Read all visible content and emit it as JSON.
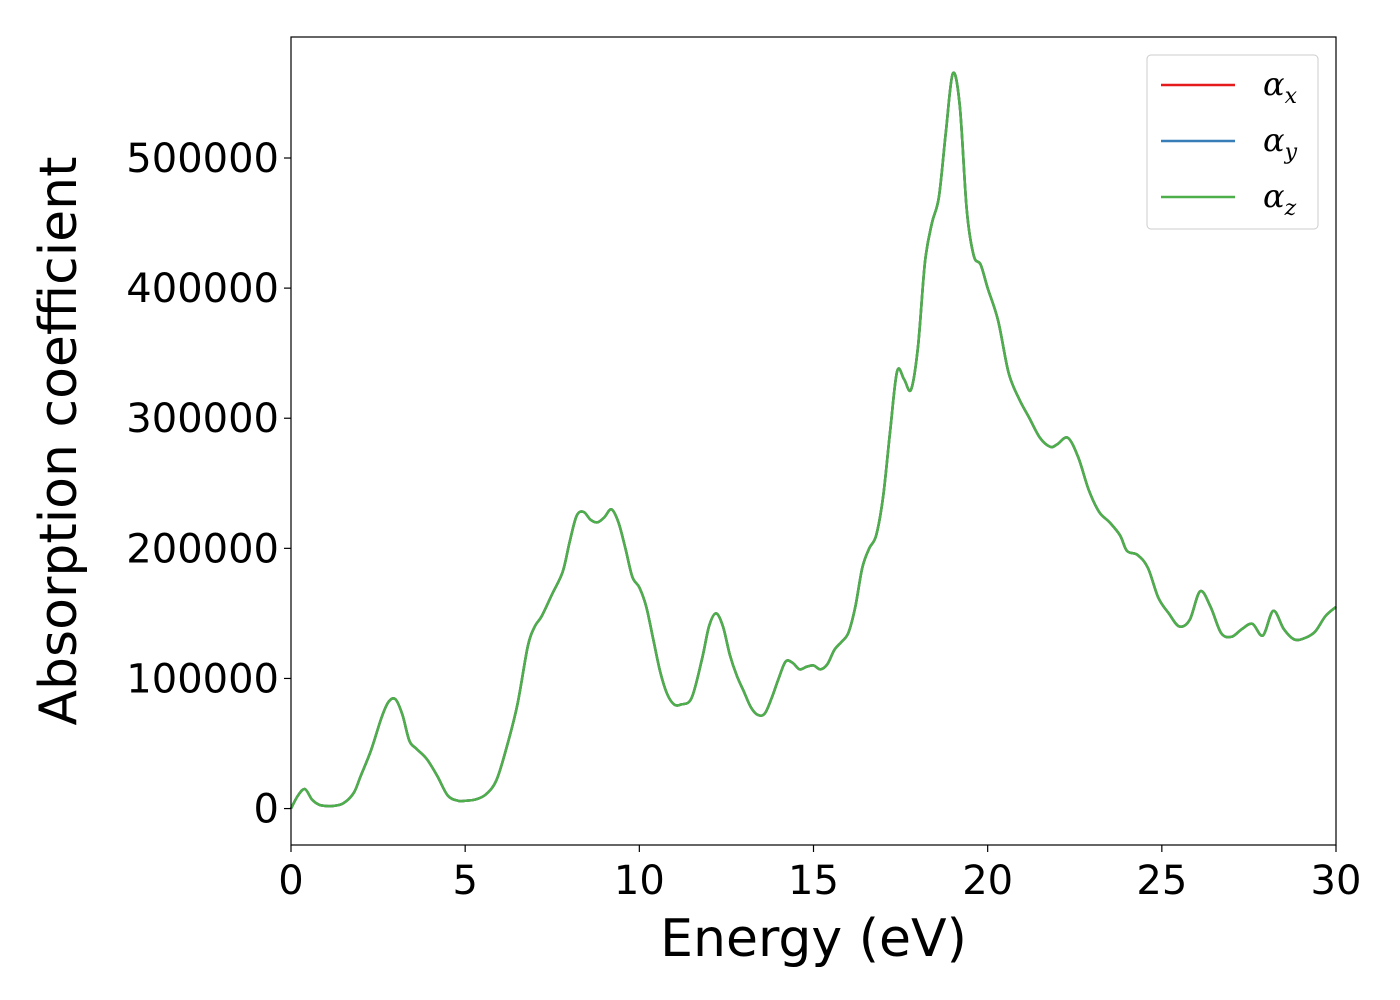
{
  "chart_data": {
    "type": "line",
    "title": "",
    "xlabel": "Energy (eV)",
    "ylabel": "Absorption coefficient",
    "xlim": [
      0,
      30
    ],
    "ylim": [
      -28000,
      593000
    ],
    "x_ticks": [
      0,
      5,
      10,
      15,
      20,
      25,
      30
    ],
    "x_tick_labels": [
      "0",
      "5",
      "10",
      "15",
      "20",
      "25",
      "30"
    ],
    "y_ticks": [
      0,
      100000,
      200000,
      300000,
      400000,
      500000
    ],
    "y_tick_labels": [
      "0",
      "100000",
      "200000",
      "300000",
      "400000",
      "500000"
    ],
    "grid": false,
    "legend_position": "top-right",
    "legend": [
      {
        "symbol": "α",
        "sub": "x",
        "color": "#e41a1c"
      },
      {
        "symbol": "α",
        "sub": "y",
        "color": "#377eb8"
      },
      {
        "symbol": "α",
        "sub": "z",
        "color": "#4daf4a"
      }
    ],
    "x": [
      0,
      0.2,
      0.4,
      0.6,
      0.8,
      1.0,
      1.2,
      1.5,
      1.8,
      2.0,
      2.3,
      2.6,
      2.8,
      3.0,
      3.2,
      3.4,
      3.6,
      3.9,
      4.2,
      4.5,
      4.8,
      5.0,
      5.3,
      5.6,
      5.9,
      6.2,
      6.5,
      6.8,
      7.0,
      7.2,
      7.5,
      7.8,
      8.0,
      8.2,
      8.4,
      8.6,
      8.8,
      9.0,
      9.2,
      9.4,
      9.6,
      9.8,
      10.0,
      10.2,
      10.4,
      10.6,
      10.8,
      11.0,
      11.2,
      11.5,
      11.8,
      12.0,
      12.2,
      12.4,
      12.6,
      12.8,
      13.0,
      13.2,
      13.4,
      13.6,
      13.8,
      14.0,
      14.2,
      14.4,
      14.6,
      14.8,
      15.0,
      15.2,
      15.4,
      15.6,
      15.8,
      16.0,
      16.2,
      16.4,
      16.6,
      16.8,
      17.0,
      17.2,
      17.4,
      17.6,
      17.8,
      18.0,
      18.2,
      18.4,
      18.6,
      18.8,
      19.0,
      19.2,
      19.4,
      19.6,
      19.8,
      20.0,
      20.3,
      20.6,
      20.9,
      21.2,
      21.5,
      21.8,
      22.0,
      22.3,
      22.6,
      22.9,
      23.2,
      23.5,
      23.8,
      24.0,
      24.3,
      24.6,
      24.9,
      25.2,
      25.5,
      25.8,
      26.1,
      26.4,
      26.7,
      27.0,
      27.3,
      27.6,
      27.9,
      28.2,
      28.5,
      28.8,
      29.1,
      29.4,
      29.7,
      30.0
    ],
    "series": [
      {
        "values": [
          0,
          10000,
          15000,
          7000,
          3000,
          2000,
          2000,
          4000,
          12000,
          25000,
          45000,
          70000,
          82000,
          84000,
          72000,
          52000,
          46000,
          38000,
          25000,
          10000,
          6000,
          6000,
          7000,
          11000,
          22000,
          48000,
          80000,
          125000,
          140000,
          148000,
          165000,
          182000,
          205000,
          225000,
          228000,
          222000,
          220000,
          224000,
          230000,
          220000,
          200000,
          178000,
          170000,
          155000,
          130000,
          105000,
          88000,
          80000,
          80000,
          85000,
          115000,
          140000,
          150000,
          140000,
          118000,
          102000,
          90000,
          78000,
          72000,
          73000,
          85000,
          100000,
          113000,
          112000,
          107000,
          109000,
          110000,
          107000,
          111000,
          122000,
          128000,
          135000,
          155000,
          185000,
          200000,
          210000,
          240000,
          290000,
          336000,
          330000,
          322000,
          355000,
          420000,
          450000,
          470000,
          520000,
          565000,
          540000,
          460000,
          425000,
          418000,
          400000,
          375000,
          335000,
          315000,
          300000,
          285000,
          278000,
          280000,
          285000,
          270000,
          245000,
          228000,
          220000,
          210000,
          198000,
          195000,
          185000,
          162000,
          150000,
          140000,
          145000,
          167000,
          155000,
          135000,
          132000,
          138000,
          142000,
          133000,
          152000,
          138000,
          130000,
          131000,
          136000,
          148000,
          155000
        ],
        "color": "#e41a1c",
        "width": 2.5
      },
      {
        "values": [
          0,
          10000,
          15000,
          7000,
          3000,
          2000,
          2000,
          4000,
          12000,
          25000,
          45000,
          70000,
          82000,
          84000,
          72000,
          52000,
          46000,
          38000,
          25000,
          10000,
          6000,
          6000,
          7000,
          11000,
          22000,
          48000,
          80000,
          125000,
          140000,
          148000,
          165000,
          182000,
          205000,
          225000,
          228000,
          222000,
          220000,
          224000,
          230000,
          220000,
          200000,
          178000,
          170000,
          155000,
          130000,
          105000,
          88000,
          80000,
          80000,
          85000,
          115000,
          140000,
          150000,
          140000,
          118000,
          102000,
          90000,
          78000,
          72000,
          73000,
          85000,
          100000,
          113000,
          112000,
          107000,
          109000,
          110000,
          107000,
          111000,
          122000,
          128000,
          135000,
          155000,
          185000,
          200000,
          210000,
          240000,
          290000,
          336000,
          330000,
          322000,
          355000,
          420000,
          450000,
          470000,
          520000,
          565000,
          540000,
          460000,
          425000,
          418000,
          400000,
          375000,
          335000,
          315000,
          300000,
          285000,
          278000,
          280000,
          285000,
          270000,
          245000,
          228000,
          220000,
          210000,
          198000,
          195000,
          185000,
          162000,
          150000,
          140000,
          145000,
          167000,
          155000,
          135000,
          132000,
          138000,
          142000,
          133000,
          152000,
          138000,
          130000,
          131000,
          136000,
          148000,
          155000
        ],
        "color": "#377eb8",
        "width": 2.5
      },
      {
        "values": [
          0,
          10000,
          15000,
          7000,
          3000,
          2000,
          2000,
          4000,
          12000,
          25000,
          45000,
          70000,
          82000,
          84000,
          72000,
          52000,
          46000,
          38000,
          25000,
          10000,
          6000,
          6000,
          7000,
          11000,
          22000,
          48000,
          80000,
          125000,
          140000,
          148000,
          165000,
          182000,
          205000,
          225000,
          228000,
          222000,
          220000,
          224000,
          230000,
          220000,
          200000,
          178000,
          170000,
          155000,
          130000,
          105000,
          88000,
          80000,
          80000,
          85000,
          115000,
          140000,
          150000,
          140000,
          118000,
          102000,
          90000,
          78000,
          72000,
          73000,
          85000,
          100000,
          113000,
          112000,
          107000,
          109000,
          110000,
          107000,
          111000,
          122000,
          128000,
          135000,
          155000,
          185000,
          200000,
          210000,
          240000,
          290000,
          336000,
          330000,
          322000,
          355000,
          420000,
          450000,
          470000,
          520000,
          565000,
          540000,
          460000,
          425000,
          418000,
          400000,
          375000,
          335000,
          315000,
          300000,
          285000,
          278000,
          280000,
          285000,
          270000,
          245000,
          228000,
          220000,
          210000,
          198000,
          195000,
          185000,
          162000,
          150000,
          140000,
          145000,
          167000,
          155000,
          135000,
          132000,
          138000,
          142000,
          133000,
          152000,
          138000,
          130000,
          131000,
          136000,
          148000,
          155000
        ],
        "color": "#4daf4a",
        "width": 2.5
      }
    ]
  }
}
